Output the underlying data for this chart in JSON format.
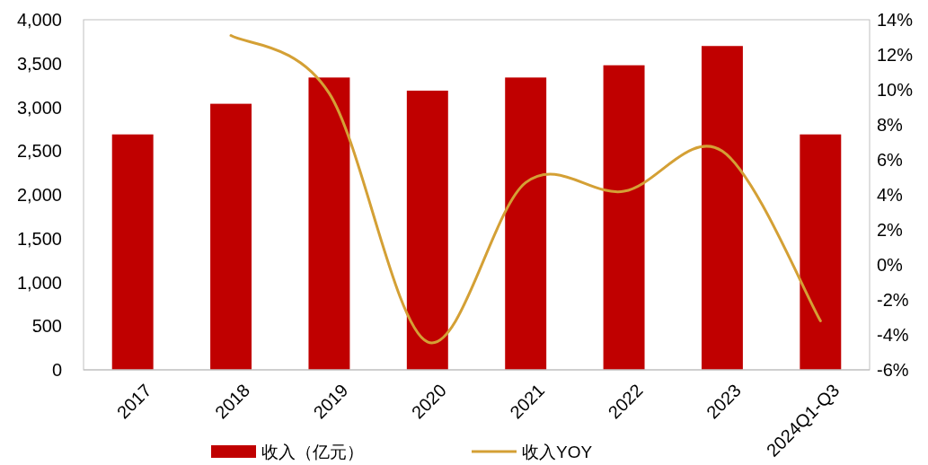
{
  "chart_data": {
    "type": "bar",
    "categories": [
      "2017",
      "2018",
      "2019",
      "2020",
      "2021",
      "2022",
      "2023",
      "2024Q1-Q3"
    ],
    "series": [
      {
        "name": "收入（亿元）",
        "color": "#c00000",
        "values": [
          2690,
          3040,
          3340,
          3190,
          3340,
          3480,
          3700,
          2690
        ]
      },
      {
        "name": "收入YOY",
        "type": "line",
        "axis": "y2",
        "color": "#d4a035",
        "values": [
          null,
          13.1,
          9.8,
          -4.4,
          4.7,
          4.2,
          6.5,
          -3.2
        ]
      }
    ],
    "ylim": [
      0,
      4000
    ],
    "yticks": [
      {
        "value": 0,
        "label": "0"
      },
      {
        "value": 500,
        "label": "500"
      },
      {
        "value": 1000,
        "label": "1,000"
      },
      {
        "value": 1500,
        "label": "1,500"
      },
      {
        "value": 2000,
        "label": "2,000"
      },
      {
        "value": 2500,
        "label": "2,500"
      },
      {
        "value": 3000,
        "label": "3,000"
      },
      {
        "value": 3500,
        "label": "3,500"
      },
      {
        "value": 4000,
        "label": "4,000"
      }
    ],
    "y2lim": [
      -6,
      14
    ],
    "y2ticks": [
      {
        "value": -6,
        "label": "-6%"
      },
      {
        "value": -4,
        "label": "-4%"
      },
      {
        "value": -2,
        "label": "-2%"
      },
      {
        "value": 0,
        "label": "0%"
      },
      {
        "value": 2,
        "label": "2%"
      },
      {
        "value": 4,
        "label": "4%"
      },
      {
        "value": 6,
        "label": "6%"
      },
      {
        "value": 8,
        "label": "8%"
      },
      {
        "value": 10,
        "label": "10%"
      },
      {
        "value": 12,
        "label": "12%"
      },
      {
        "value": 14,
        "label": "14%"
      }
    ],
    "grid": false,
    "legend": "bottom",
    "marker": "none",
    "line_style": "solid"
  }
}
